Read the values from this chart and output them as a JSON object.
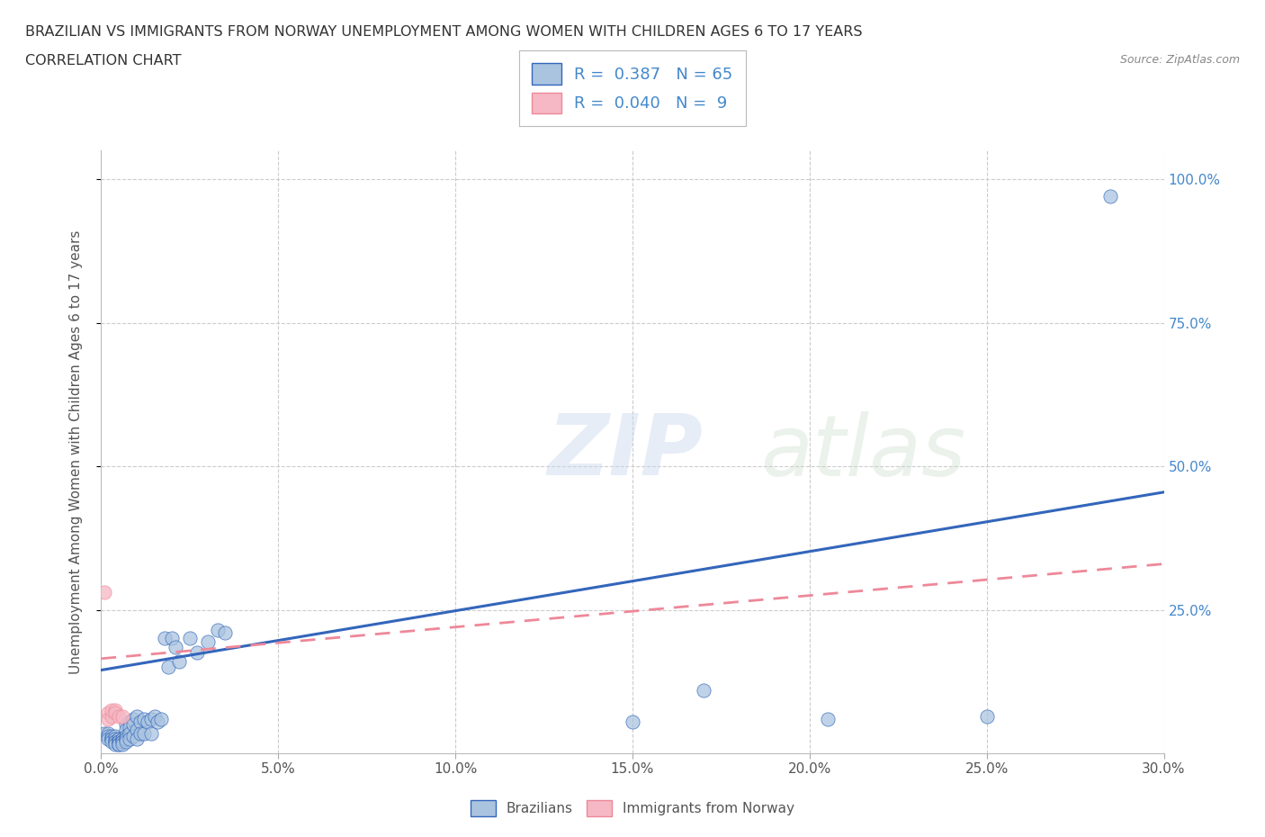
{
  "title_line1": "BRAZILIAN VS IMMIGRANTS FROM NORWAY UNEMPLOYMENT AMONG WOMEN WITH CHILDREN AGES 6 TO 17 YEARS",
  "title_line2": "CORRELATION CHART",
  "source_text": "Source: ZipAtlas.com",
  "ylabel": "Unemployment Among Women with Children Ages 6 to 17 years",
  "xlim": [
    0.0,
    0.3
  ],
  "ylim": [
    0.0,
    1.05
  ],
  "xtick_labels": [
    "0.0%",
    "5.0%",
    "10.0%",
    "15.0%",
    "20.0%",
    "25.0%",
    "30.0%"
  ],
  "xtick_vals": [
    0.0,
    0.05,
    0.1,
    0.15,
    0.2,
    0.25,
    0.3
  ],
  "ytick_labels": [
    "25.0%",
    "50.0%",
    "75.0%",
    "100.0%"
  ],
  "ytick_vals": [
    0.25,
    0.5,
    0.75,
    1.0
  ],
  "grid_color": "#cccccc",
  "background_color": "#ffffff",
  "brazilian_color": "#aac4e0",
  "norway_color": "#f5b8c4",
  "brazilian_line_color": "#3366bb",
  "norway_line_color": "#ee8899",
  "R_brazilian": 0.387,
  "N_brazilian": 65,
  "R_norway": 0.04,
  "N_norway": 9,
  "legend_label_brazilian": "Brazilians",
  "legend_label_norway": "Immigrants from Norway",
  "watermark_zip": "ZIP",
  "watermark_atlas": "atlas",
  "brazilians_x": [
    0.001,
    0.002,
    0.002,
    0.002,
    0.003,
    0.003,
    0.003,
    0.003,
    0.004,
    0.004,
    0.004,
    0.004,
    0.004,
    0.005,
    0.005,
    0.005,
    0.005,
    0.005,
    0.005,
    0.006,
    0.006,
    0.006,
    0.006,
    0.006,
    0.007,
    0.007,
    0.007,
    0.007,
    0.007,
    0.007,
    0.008,
    0.008,
    0.008,
    0.008,
    0.009,
    0.009,
    0.009,
    0.01,
    0.01,
    0.01,
    0.011,
    0.011,
    0.012,
    0.012,
    0.013,
    0.014,
    0.014,
    0.015,
    0.016,
    0.017,
    0.018,
    0.019,
    0.02,
    0.021,
    0.022,
    0.025,
    0.027,
    0.03,
    0.033,
    0.035,
    0.15,
    0.17,
    0.205,
    0.25,
    0.285
  ],
  "brazilians_y": [
    0.035,
    0.035,
    0.03,
    0.025,
    0.03,
    0.025,
    0.025,
    0.02,
    0.03,
    0.025,
    0.02,
    0.02,
    0.015,
    0.025,
    0.025,
    0.02,
    0.02,
    0.015,
    0.015,
    0.025,
    0.025,
    0.02,
    0.02,
    0.015,
    0.05,
    0.04,
    0.03,
    0.025,
    0.025,
    0.02,
    0.055,
    0.045,
    0.035,
    0.025,
    0.06,
    0.05,
    0.03,
    0.065,
    0.04,
    0.025,
    0.055,
    0.035,
    0.06,
    0.035,
    0.055,
    0.06,
    0.035,
    0.065,
    0.055,
    0.06,
    0.2,
    0.15,
    0.2,
    0.185,
    0.16,
    0.2,
    0.175,
    0.195,
    0.215,
    0.21,
    0.055,
    0.11,
    0.06,
    0.065,
    0.97
  ],
  "norway_x": [
    0.001,
    0.002,
    0.002,
    0.003,
    0.003,
    0.004,
    0.004,
    0.005,
    0.006
  ],
  "norway_y": [
    0.28,
    0.07,
    0.06,
    0.065,
    0.075,
    0.075,
    0.07,
    0.065,
    0.065
  ]
}
